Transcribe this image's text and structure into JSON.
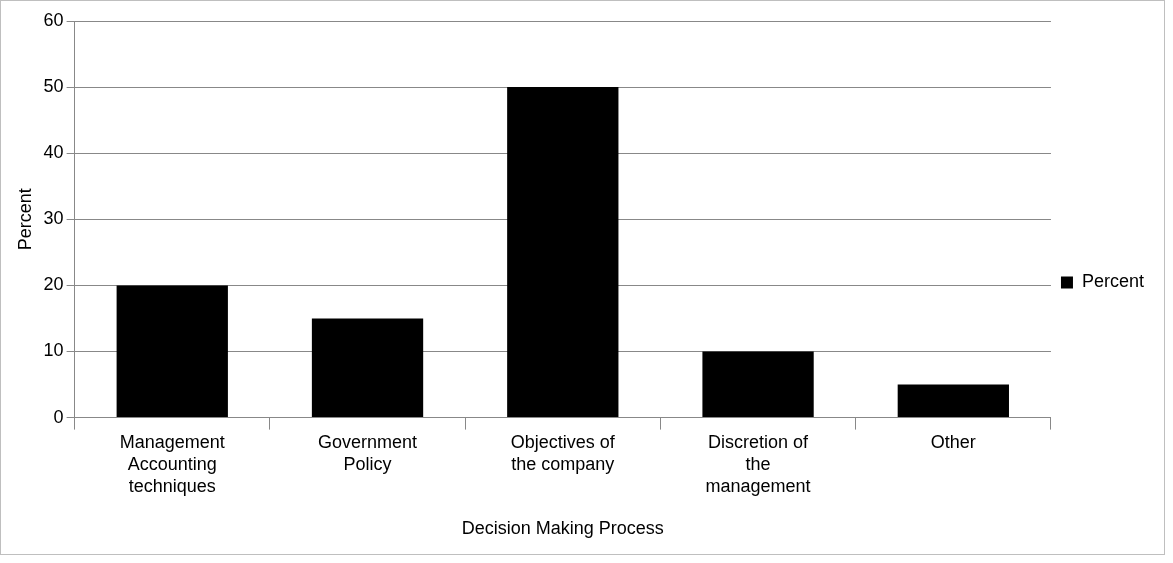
{
  "chart_data": {
    "type": "bar",
    "xlabel": "Decision Making Process",
    "ylabel": "Percent",
    "categories": [
      "Management Accounting techniques",
      "Government Policy",
      "Objectives of the company",
      "Discretion of the management",
      "Other"
    ],
    "series": [
      {
        "name": "Percent",
        "color": "#000000",
        "values": [
          20,
          15,
          50,
          10,
          5
        ]
      }
    ],
    "ylim": [
      0,
      60
    ],
    "yticks": [
      0,
      10,
      20,
      30,
      40,
      50,
      60
    ],
    "grid": "y",
    "legend": "right"
  }
}
